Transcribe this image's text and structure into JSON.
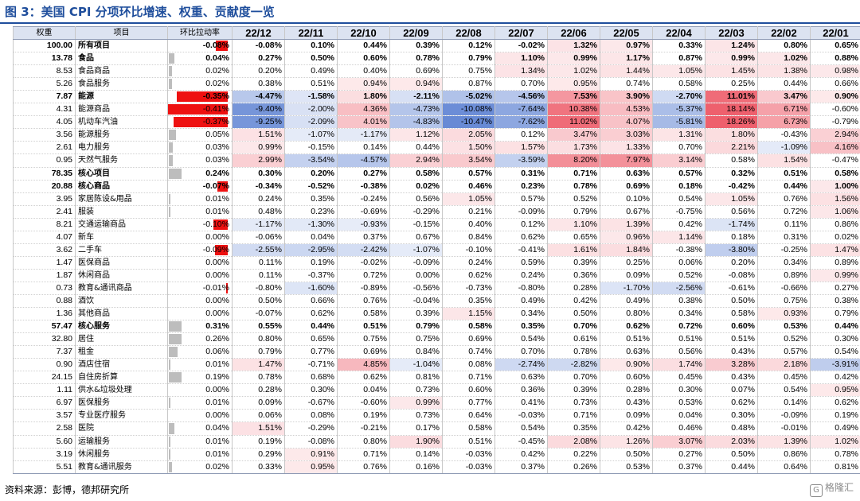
{
  "title": "图 3：美国 CPI 分项环比增速、权重、贡献度一览",
  "source": "资料来源：彭博，德邦研究所",
  "watermark": "格隆汇",
  "watermark_icon": "G",
  "colors": {
    "neg_bar": "#ee1111",
    "pos_bar": "#bdbdbd",
    "header_bg": "#dce3f1",
    "title": "#1f4e9c"
  },
  "pull_bar_max": 0.41,
  "heat_scale_max": 12,
  "headers": {
    "weight": "权重",
    "item": "项目",
    "pull": "环比拉动率",
    "months": [
      "22/12",
      "22/11",
      "22/10",
      "22/09",
      "22/08",
      "22/07",
      "22/06",
      "22/05",
      "22/04",
      "22/03",
      "22/02",
      "22/01"
    ]
  },
  "rows": [
    {
      "w": "100.00",
      "name": "所有项目",
      "lv": 0,
      "bold": true,
      "pull": "-0.08%",
      "vals": [
        "-0.08%",
        "0.10%",
        "0.44%",
        "0.39%",
        "0.12%",
        "-0.02%",
        "1.32%",
        "0.97%",
        "0.33%",
        "1.24%",
        "0.80%",
        "0.65%"
      ]
    },
    {
      "w": "13.78",
      "name": "食品",
      "lv": 0,
      "bold": true,
      "pull": "0.04%",
      "vals": [
        "0.27%",
        "0.50%",
        "0.60%",
        "0.78%",
        "0.79%",
        "1.10%",
        "0.99%",
        "1.17%",
        "0.87%",
        "0.99%",
        "1.02%",
        "0.88%"
      ]
    },
    {
      "w": "8.53",
      "name": "食品商品",
      "lv": 1,
      "bold": false,
      "pull": "0.02%",
      "vals": [
        "0.20%",
        "0.49%",
        "0.40%",
        "0.69%",
        "0.75%",
        "1.34%",
        "1.02%",
        "1.44%",
        "1.05%",
        "1.45%",
        "1.38%",
        "0.98%"
      ]
    },
    {
      "w": "5.26",
      "name": "食品服务",
      "lv": 1,
      "bold": false,
      "pull": "0.02%",
      "vals": [
        "0.38%",
        "0.51%",
        "0.94%",
        "0.94%",
        "0.87%",
        "0.70%",
        "0.95%",
        "0.74%",
        "0.58%",
        "0.25%",
        "0.44%",
        "0.66%"
      ]
    },
    {
      "w": "7.87",
      "name": "能源",
      "lv": 0,
      "bold": true,
      "pull": "-0.35%",
      "vals": [
        "-4.47%",
        "-1.58%",
        "1.80%",
        "-2.11%",
        "-5.02%",
        "-4.56%",
        "7.53%",
        "3.90%",
        "-2.70%",
        "11.01%",
        "3.47%",
        "0.90%"
      ]
    },
    {
      "w": "4.31",
      "name": "能源商品",
      "lv": 1,
      "bold": false,
      "pull": "-0.41%",
      "vals": [
        "-9.40%",
        "-2.00%",
        "4.36%",
        "-4.73%",
        "-10.08%",
        "-7.64%",
        "10.38%",
        "4.53%",
        "-5.37%",
        "18.14%",
        "6.71%",
        "-0.60%"
      ]
    },
    {
      "w": "4.05",
      "name": "机动车汽油",
      "lv": 1,
      "bold": false,
      "pull": "-0.37%",
      "vals": [
        "-9.25%",
        "-2.09%",
        "4.01%",
        "-4.83%",
        "-10.47%",
        "-7.62%",
        "11.02%",
        "4.07%",
        "-5.81%",
        "18.26%",
        "6.73%",
        "-0.79%"
      ]
    },
    {
      "w": "3.56",
      "name": "能源服务",
      "lv": 1,
      "bold": false,
      "pull": "0.05%",
      "vals": [
        "1.51%",
        "-1.07%",
        "-1.17%",
        "1.12%",
        "2.05%",
        "0.12%",
        "3.47%",
        "3.03%",
        "1.31%",
        "1.80%",
        "-0.43%",
        "2.94%"
      ]
    },
    {
      "w": "2.61",
      "name": "电力服务",
      "lv": 1,
      "bold": false,
      "pull": "0.03%",
      "vals": [
        "0.99%",
        "-0.15%",
        "0.14%",
        "0.44%",
        "1.50%",
        "1.57%",
        "1.73%",
        "1.33%",
        "0.70%",
        "2.21%",
        "-1.09%",
        "4.16%"
      ]
    },
    {
      "w": "0.95",
      "name": "天然气服务",
      "lv": 1,
      "bold": false,
      "pull": "0.03%",
      "vals": [
        "2.99%",
        "-3.54%",
        "-4.57%",
        "2.94%",
        "3.54%",
        "-3.59%",
        "8.20%",
        "7.97%",
        "3.14%",
        "0.58%",
        "1.54%",
        "-0.47%"
      ]
    },
    {
      "w": "78.35",
      "name": "核心项目",
      "lv": 0,
      "bold": true,
      "pull": "0.24%",
      "vals": [
        "0.30%",
        "0.20%",
        "0.27%",
        "0.58%",
        "0.57%",
        "0.31%",
        "0.71%",
        "0.63%",
        "0.57%",
        "0.32%",
        "0.51%",
        "0.58%"
      ]
    },
    {
      "w": "20.88",
      "name": "核心商品",
      "lv": 0,
      "bold": true,
      "pull": "-0.07%",
      "vals": [
        "-0.34%",
        "-0.52%",
        "-0.38%",
        "0.02%",
        "0.46%",
        "0.23%",
        "0.78%",
        "0.69%",
        "0.18%",
        "-0.42%",
        "0.44%",
        "1.00%"
      ]
    },
    {
      "w": "3.95",
      "name": "家居陈设&用品",
      "lv": 1,
      "bold": false,
      "pull": "0.01%",
      "vals": [
        "0.24%",
        "0.35%",
        "-0.24%",
        "0.56%",
        "1.05%",
        "0.57%",
        "0.52%",
        "0.10%",
        "0.54%",
        "1.05%",
        "0.76%",
        "1.56%"
      ]
    },
    {
      "w": "2.41",
      "name": "服装",
      "lv": 1,
      "bold": false,
      "pull": "0.01%",
      "vals": [
        "0.48%",
        "0.23%",
        "-0.69%",
        "-0.29%",
        "0.21%",
        "-0.09%",
        "0.79%",
        "0.67%",
        "-0.75%",
        "0.56%",
        "0.72%",
        "1.06%"
      ]
    },
    {
      "w": "8.21",
      "name": "交通运输商品",
      "lv": 1,
      "bold": false,
      "pull": "-0.10%",
      "vals": [
        "-1.17%",
        "-1.30%",
        "-0.93%",
        "-0.15%",
        "0.40%",
        "0.12%",
        "1.10%",
        "1.39%",
        "0.42%",
        "-1.74%",
        "0.11%",
        "0.86%"
      ]
    },
    {
      "w": "4.07",
      "name": "新车",
      "lv": 1,
      "bold": false,
      "pull": "0.00%",
      "vals": [
        "-0.06%",
        "0.04%",
        "0.37%",
        "0.67%",
        "0.84%",
        "0.62%",
        "0.65%",
        "0.96%",
        "1.14%",
        "0.18%",
        "0.31%",
        "0.02%"
      ]
    },
    {
      "w": "3.62",
      "name": "二手车",
      "lv": 1,
      "bold": false,
      "pull": "-0.09%",
      "vals": [
        "-2.55%",
        "-2.95%",
        "-2.42%",
        "-1.07%",
        "-0.10%",
        "-0.41%",
        "1.61%",
        "1.84%",
        "-0.38%",
        "-3.80%",
        "-0.25%",
        "1.47%"
      ]
    },
    {
      "w": "1.47",
      "name": "医保商品",
      "lv": 1,
      "bold": false,
      "pull": "0.00%",
      "vals": [
        "0.11%",
        "0.19%",
        "-0.02%",
        "-0.09%",
        "0.24%",
        "0.59%",
        "0.39%",
        "0.25%",
        "0.06%",
        "0.20%",
        "0.34%",
        "0.89%"
      ]
    },
    {
      "w": "1.87",
      "name": "休闲商品",
      "lv": 1,
      "bold": false,
      "pull": "0.00%",
      "vals": [
        "0.11%",
        "-0.37%",
        "0.72%",
        "0.00%",
        "0.62%",
        "0.24%",
        "0.36%",
        "0.09%",
        "0.52%",
        "-0.08%",
        "0.89%",
        "0.99%"
      ]
    },
    {
      "w": "0.73",
      "name": "教育&通讯商品",
      "lv": 1,
      "bold": false,
      "pull": "-0.01%",
      "vals": [
        "-0.80%",
        "-1.60%",
        "-0.89%",
        "-0.56%",
        "-0.73%",
        "-0.80%",
        "0.28%",
        "-1.70%",
        "-2.56%",
        "-0.61%",
        "-0.66%",
        "0.27%"
      ]
    },
    {
      "w": "0.88",
      "name": "酒饮",
      "lv": 1,
      "bold": false,
      "pull": "0.00%",
      "vals": [
        "0.50%",
        "0.66%",
        "0.76%",
        "-0.04%",
        "0.35%",
        "0.49%",
        "0.42%",
        "0.49%",
        "0.38%",
        "0.50%",
        "0.75%",
        "0.38%"
      ]
    },
    {
      "w": "1.36",
      "name": "其他商品",
      "lv": 1,
      "bold": false,
      "pull": "0.00%",
      "vals": [
        "-0.07%",
        "0.62%",
        "0.58%",
        "0.39%",
        "1.15%",
        "0.34%",
        "0.50%",
        "0.80%",
        "0.34%",
        "0.58%",
        "0.93%",
        "0.79%"
      ]
    },
    {
      "w": "57.47",
      "name": "核心服务",
      "lv": 0,
      "bold": true,
      "pull": "0.31%",
      "vals": [
        "0.55%",
        "0.44%",
        "0.51%",
        "0.79%",
        "0.58%",
        "0.35%",
        "0.70%",
        "0.62%",
        "0.72%",
        "0.60%",
        "0.53%",
        "0.44%"
      ]
    },
    {
      "w": "32.80",
      "name": "居住",
      "lv": 1,
      "bold": false,
      "pull": "0.26%",
      "vals": [
        "0.80%",
        "0.65%",
        "0.75%",
        "0.75%",
        "0.69%",
        "0.54%",
        "0.61%",
        "0.51%",
        "0.51%",
        "0.51%",
        "0.52%",
        "0.30%"
      ]
    },
    {
      "w": "7.37",
      "name": "租金",
      "lv": 1,
      "bold": false,
      "pull": "0.06%",
      "vals": [
        "0.79%",
        "0.77%",
        "0.69%",
        "0.84%",
        "0.74%",
        "0.70%",
        "0.78%",
        "0.63%",
        "0.56%",
        "0.43%",
        "0.57%",
        "0.54%"
      ]
    },
    {
      "w": "0.90",
      "name": "酒店住宿",
      "lv": 1,
      "bold": false,
      "pull": "0.01%",
      "vals": [
        "1.47%",
        "-0.71%",
        "4.85%",
        "-1.04%",
        "0.08%",
        "-2.74%",
        "-2.82%",
        "0.90%",
        "1.74%",
        "3.28%",
        "2.18%",
        "-3.91%"
      ]
    },
    {
      "w": "24.15",
      "name": "自住房折算",
      "lv": 1,
      "bold": false,
      "pull": "0.19%",
      "vals": [
        "0.78%",
        "0.68%",
        "0.62%",
        "0.81%",
        "0.71%",
        "0.63%",
        "0.70%",
        "0.60%",
        "0.45%",
        "0.43%",
        "0.45%",
        "0.42%"
      ]
    },
    {
      "w": "1.11",
      "name": "供水&垃圾处理",
      "lv": 1,
      "bold": false,
      "pull": "0.00%",
      "vals": [
        "0.28%",
        "0.30%",
        "0.04%",
        "0.73%",
        "0.60%",
        "0.36%",
        "0.39%",
        "0.28%",
        "0.30%",
        "0.07%",
        "0.54%",
        "0.95%"
      ]
    },
    {
      "w": "6.97",
      "name": "医保服务",
      "lv": 1,
      "bold": false,
      "pull": "0.01%",
      "vals": [
        "0.09%",
        "-0.67%",
        "-0.60%",
        "0.99%",
        "0.77%",
        "0.41%",
        "0.73%",
        "0.43%",
        "0.53%",
        "0.62%",
        "0.14%",
        "0.62%"
      ]
    },
    {
      "w": "3.57",
      "name": "专业医疗服务",
      "lv": 1,
      "bold": false,
      "pull": "0.00%",
      "vals": [
        "0.06%",
        "0.08%",
        "0.19%",
        "0.73%",
        "0.64%",
        "-0.03%",
        "0.71%",
        "0.09%",
        "0.04%",
        "0.30%",
        "-0.09%",
        "0.19%"
      ]
    },
    {
      "w": "2.58",
      "name": "医院",
      "lv": 1,
      "bold": false,
      "pull": "0.04%",
      "vals": [
        "1.51%",
        "-0.29%",
        "-0.21%",
        "0.17%",
        "0.58%",
        "0.54%",
        "0.35%",
        "0.42%",
        "0.46%",
        "0.48%",
        "-0.01%",
        "0.49%"
      ]
    },
    {
      "w": "5.60",
      "name": "运输服务",
      "lv": 1,
      "bold": false,
      "pull": "0.01%",
      "vals": [
        "0.19%",
        "-0.08%",
        "0.80%",
        "1.90%",
        "0.51%",
        "-0.45%",
        "2.08%",
        "1.26%",
        "3.07%",
        "2.03%",
        "1.39%",
        "1.02%"
      ]
    },
    {
      "w": "3.19",
      "name": "休闲服务",
      "lv": 1,
      "bold": false,
      "pull": "0.01%",
      "vals": [
        "0.29%",
        "0.91%",
        "0.71%",
        "0.14%",
        "-0.03%",
        "0.42%",
        "0.22%",
        "0.50%",
        "0.27%",
        "0.50%",
        "0.86%",
        "0.78%"
      ]
    },
    {
      "w": "5.51",
      "name": "教育&通讯服务",
      "lv": 1,
      "bold": false,
      "pull": "0.02%",
      "vals": [
        "0.33%",
        "0.95%",
        "0.76%",
        "0.16%",
        "-0.03%",
        "0.37%",
        "0.26%",
        "0.53%",
        "0.37%",
        "0.44%",
        "0.64%",
        "0.81%"
      ]
    }
  ]
}
